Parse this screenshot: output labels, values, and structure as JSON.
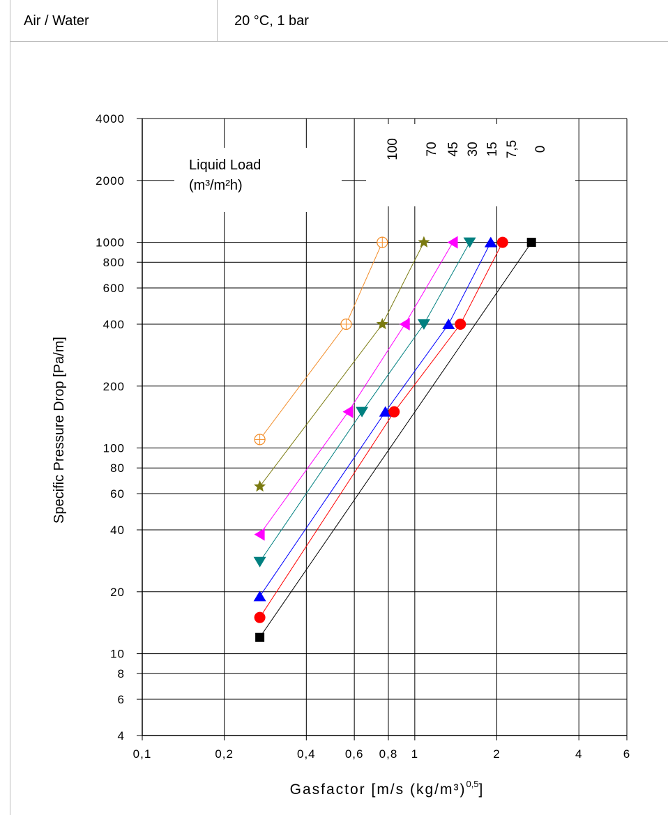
{
  "header": {
    "system": "Air / Water",
    "conditions": "20 °C, 1 bar"
  },
  "chart_data": {
    "type": "line",
    "xlabel_main": "Gasfactor [m/s (kg/m³)",
    "xlabel_exp": "0,5",
    "xlabel_close": "]",
    "ylabel": "Specific Pressure Drop [Pa/m]",
    "x_scale": "log",
    "y_scale": "log",
    "xlim": [
      0.1,
      6
    ],
    "ylim": [
      4,
      4000
    ],
    "grid": true,
    "x_ticks": [
      {
        "v": 0.1,
        "label": "0,1"
      },
      {
        "v": 0.2,
        "label": "0,2"
      },
      {
        "v": 0.4,
        "label": "0,4"
      },
      {
        "v": 0.6,
        "label": "0,6"
      },
      {
        "v": 0.8,
        "label": "0,8"
      },
      {
        "v": 1,
        "label": "1"
      },
      {
        "v": 2,
        "label": "2"
      },
      {
        "v": 4,
        "label": "4"
      },
      {
        "v": 6,
        "label": "6"
      }
    ],
    "y_ticks": [
      {
        "v": 4,
        "label": "4"
      },
      {
        "v": 6,
        "label": "6"
      },
      {
        "v": 8,
        "label": "8"
      },
      {
        "v": 10,
        "label": "10"
      },
      {
        "v": 20,
        "label": "20"
      },
      {
        "v": 40,
        "label": "40"
      },
      {
        "v": 60,
        "label": "60"
      },
      {
        "v": 80,
        "label": "80"
      },
      {
        "v": 100,
        "label": "100"
      },
      {
        "v": 200,
        "label": "200"
      },
      {
        "v": 400,
        "label": "400"
      },
      {
        "v": 600,
        "label": "600"
      },
      {
        "v": 800,
        "label": "800"
      },
      {
        "v": 1000,
        "label": "1000"
      },
      {
        "v": 2000,
        "label": "2000"
      },
      {
        "v": 4000,
        "label": "4000"
      }
    ],
    "legend_title_line1": "Liquid Load",
    "legend_title_line2": "(m³/m²h)",
    "series": [
      {
        "name": "100",
        "color": "#f28c28",
        "marker": "circle-plus",
        "x": [
          0.27,
          0.56,
          0.76
        ],
        "y": [
          110,
          400,
          1000
        ]
      },
      {
        "name": "70",
        "color": "#7a7a10",
        "marker": "star",
        "x": [
          0.27,
          0.76,
          1.08
        ],
        "y": [
          65,
          400,
          1000
        ]
      },
      {
        "name": "45",
        "color": "#ff00ff",
        "marker": "triangle-left",
        "x": [
          0.27,
          0.57,
          0.92,
          1.38
        ],
        "y": [
          38,
          150,
          400,
          1000
        ]
      },
      {
        "name": "30",
        "color": "#008080",
        "marker": "triangle-down",
        "x": [
          0.27,
          0.64,
          1.08,
          1.59
        ],
        "y": [
          28,
          150,
          400,
          1000
        ]
      },
      {
        "name": "15",
        "color": "#0000ff",
        "marker": "triangle-up",
        "x": [
          0.27,
          0.78,
          1.33,
          1.9
        ],
        "y": [
          19,
          150,
          400,
          1000
        ]
      },
      {
        "name": "7,5",
        "color": "#ff0000",
        "marker": "circle",
        "x": [
          0.27,
          0.84,
          1.47,
          2.1
        ],
        "y": [
          15,
          150,
          400,
          1000
        ]
      },
      {
        "name": "0",
        "color": "#000000",
        "marker": "square",
        "x": [
          0.27,
          2.68
        ],
        "y": [
          12,
          1000
        ]
      }
    ]
  }
}
